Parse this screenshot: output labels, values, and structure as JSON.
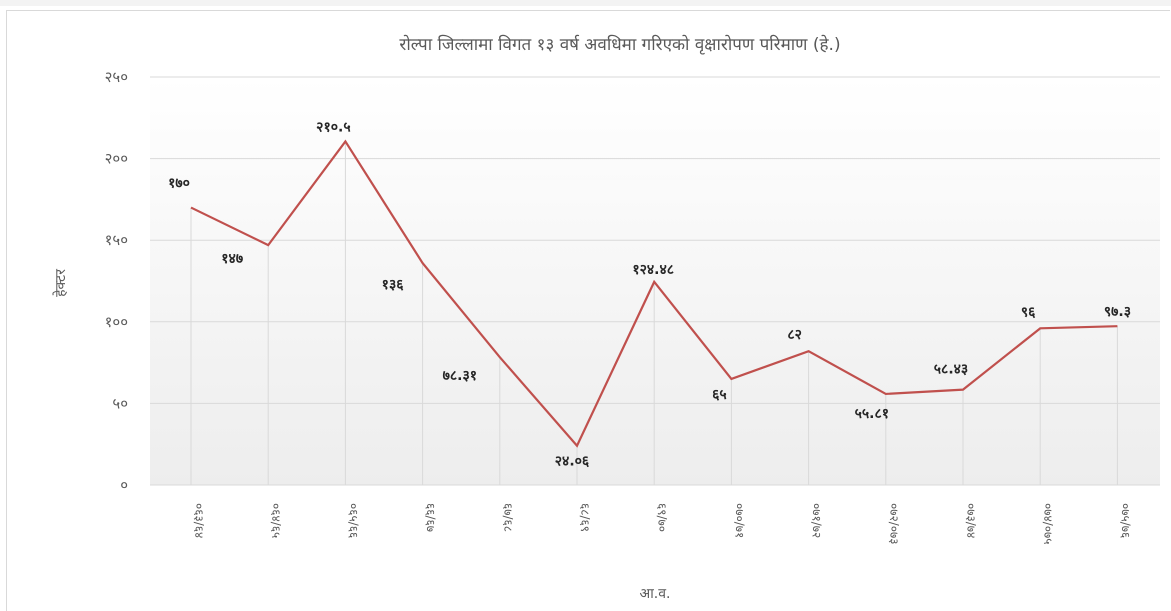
{
  "chart_data": {
    "type": "line",
    "title": "रोल्पा जिल्लामा विगत १३ वर्ष अवधिमा गरिएको वृक्षारोपण परिमाण  (हे.)",
    "xlabel": "आ.व.",
    "ylabel": "हेक्टर",
    "ylim": [
      0,
      250
    ],
    "yticks": [
      "०",
      "५०",
      "१००",
      "१५०",
      "२००",
      "२५०"
    ],
    "categories": [
      "०६३/६४",
      "०६४/६५",
      "०६५/६६",
      "६६/६७",
      "६७/६८",
      "६८/६९",
      "६९/७०",
      "०७०/७१",
      "०७१/७२",
      "०७२/०७३",
      "०७३/७४",
      "०७४/०७५",
      "०७५/७६"
    ],
    "values": [
      170,
      147,
      210.5,
      136,
      78.31,
      24.06,
      124.48,
      65,
      82,
      55.81,
      58.43,
      96,
      97.3
    ],
    "value_labels": [
      "१७०",
      "१४७",
      "२१०.५",
      "१३६",
      "७८.३१",
      "२४.०६",
      "१२४.४८",
      "६५",
      "८२",
      "५५.८१",
      "५८.४३",
      "९६",
      "९७.३"
    ],
    "grid": true,
    "line_color": "#c0504d"
  }
}
